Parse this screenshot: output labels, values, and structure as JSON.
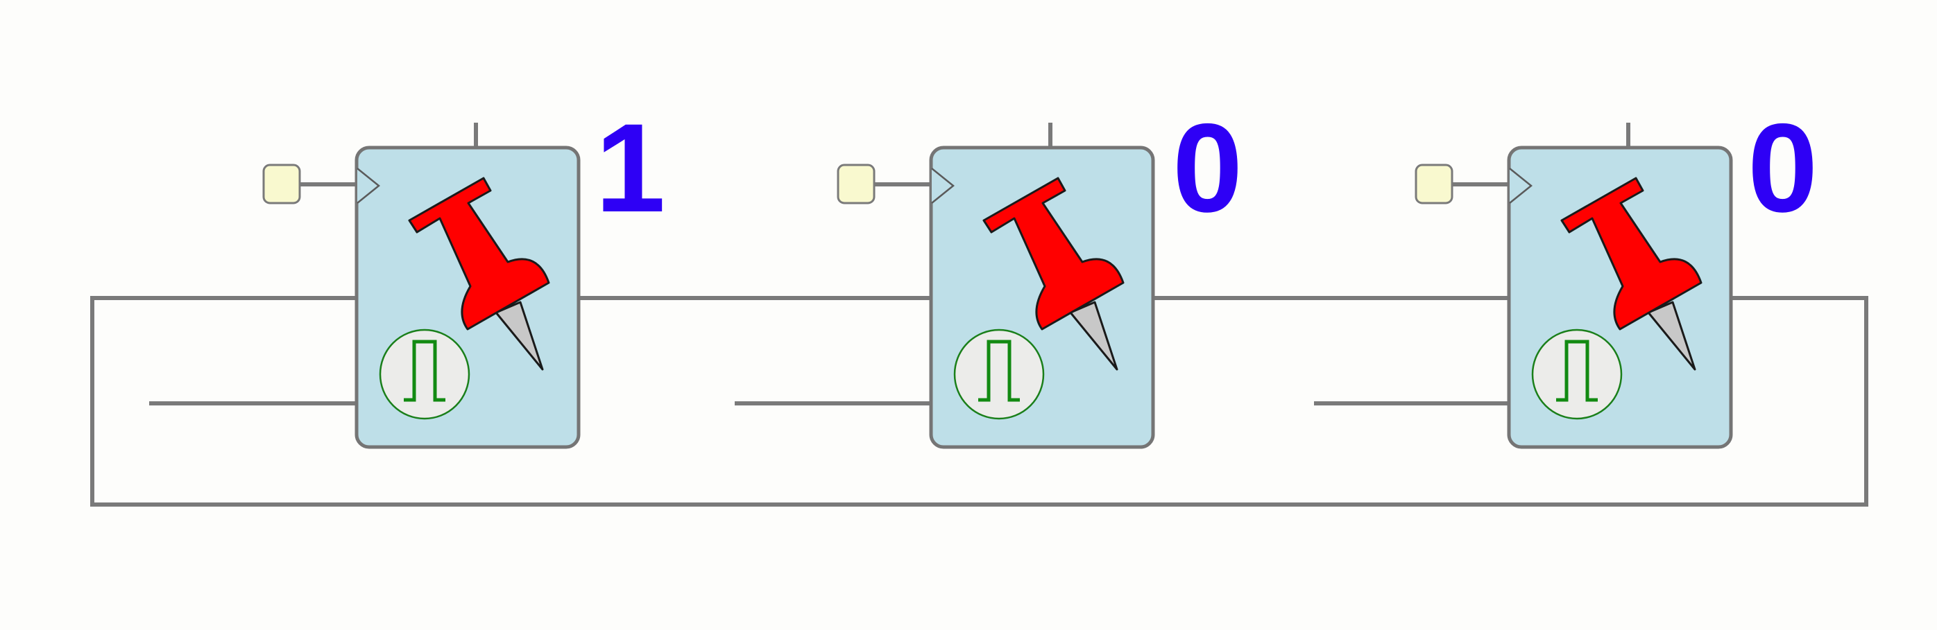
{
  "colors": {
    "value_text": "#2e00f5",
    "block_fill": "#bedfe8",
    "input_fill": "#f9f9cf",
    "pushpin": "#ff0000",
    "pulse_symbol": "#128a12",
    "wire": "#7a7a7a"
  },
  "registers": [
    {
      "value": "1",
      "icons": [
        "pushpin-icon",
        "pulse-icon",
        "clock-input-triangle"
      ]
    },
    {
      "value": "0",
      "icons": [
        "pushpin-icon",
        "pulse-icon",
        "clock-input-triangle"
      ]
    },
    {
      "value": "0",
      "icons": [
        "pushpin-icon",
        "pulse-icon",
        "clock-input-triangle"
      ]
    }
  ]
}
